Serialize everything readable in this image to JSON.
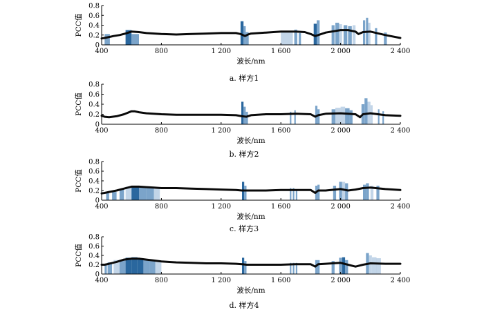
{
  "axis_common": {
    "xlabel": "波长/nm",
    "ylabel": "PCC值",
    "xticks": [
      400,
      800,
      1200,
      1600,
      2000,
      2400
    ],
    "xtick_labels": [
      "400",
      "800",
      "1 200",
      "1 600",
      "2 000",
      "2 400"
    ],
    "yticks": [
      0,
      0.2,
      0.4,
      0.6,
      0.8
    ],
    "ytick_labels": [
      "0",
      "0.2",
      "0.4",
      "0.6",
      "0.8"
    ],
    "xlim": [
      400,
      2400
    ],
    "ylim": [
      0,
      0.8
    ]
  },
  "colors": {
    "line": "#0a0a0a",
    "band_dark": "#1f5f99",
    "band_mid": "#4f86b8",
    "band_light": "#8fb3d6"
  },
  "chart_data": [
    {
      "type": "line",
      "caption": "a.  样方1",
      "series": [
        {
          "x": [
            400,
            420,
            450,
            480,
            520,
            560,
            600,
            650,
            700,
            800,
            900,
            1000,
            1100,
            1200,
            1300,
            1330,
            1360,
            1380,
            1400,
            1500,
            1600,
            1700,
            1760,
            1800,
            1830,
            1850,
            1900,
            2000,
            2050,
            2100,
            2120,
            2150,
            2200,
            2300,
            2400
          ],
          "y": [
            0.13,
            0.14,
            0.16,
            0.18,
            0.2,
            0.23,
            0.27,
            0.26,
            0.24,
            0.22,
            0.21,
            0.22,
            0.23,
            0.24,
            0.24,
            0.22,
            0.18,
            0.21,
            0.23,
            0.25,
            0.27,
            0.27,
            0.26,
            0.22,
            0.18,
            0.2,
            0.25,
            0.3,
            0.3,
            0.27,
            0.22,
            0.26,
            0.27,
            0.2,
            0.14
          ]
        }
      ],
      "bands": [
        [
          420,
          455,
          0.22,
          "mid"
        ],
        [
          560,
          600,
          0.3,
          "dark"
        ],
        [
          600,
          650,
          0.22,
          "mid"
        ],
        [
          1330,
          1350,
          0.48,
          "dark"
        ],
        [
          1350,
          1365,
          0.38,
          "mid"
        ],
        [
          1365,
          1385,
          0.26,
          "mid"
        ],
        [
          1600,
          1680,
          0.27,
          "light"
        ],
        [
          1690,
          1710,
          0.31,
          "mid"
        ],
        [
          1720,
          1735,
          0.24,
          "mid"
        ],
        [
          1820,
          1840,
          0.43,
          "dark"
        ],
        [
          1840,
          1860,
          0.5,
          "mid"
        ],
        [
          1940,
          1960,
          0.4,
          "mid"
        ],
        [
          1965,
          1990,
          0.45,
          "mid"
        ],
        [
          1990,
          2010,
          0.42,
          "light"
        ],
        [
          2020,
          2045,
          0.4,
          "mid"
        ],
        [
          2050,
          2075,
          0.38,
          "mid"
        ],
        [
          2080,
          2100,
          0.4,
          "light"
        ],
        [
          2150,
          2165,
          0.5,
          "mid"
        ],
        [
          2170,
          2185,
          0.55,
          "mid"
        ],
        [
          2185,
          2200,
          0.45,
          "light"
        ],
        [
          2230,
          2245,
          0.34,
          "mid"
        ],
        [
          2290,
          2310,
          0.25,
          "mid"
        ]
      ]
    },
    {
      "type": "line",
      "caption": "b.  样方2",
      "series": [
        {
          "x": [
            400,
            420,
            450,
            500,
            550,
            600,
            620,
            650,
            700,
            800,
            900,
            1000,
            1100,
            1200,
            1300,
            1340,
            1370,
            1400,
            1500,
            1600,
            1700,
            1800,
            1830,
            1850,
            1900,
            2000,
            2100,
            2130,
            2150,
            2200,
            2300,
            2400
          ],
          "y": [
            0.17,
            0.15,
            0.14,
            0.16,
            0.2,
            0.26,
            0.26,
            0.24,
            0.22,
            0.2,
            0.19,
            0.19,
            0.19,
            0.19,
            0.18,
            0.16,
            0.15,
            0.18,
            0.2,
            0.2,
            0.21,
            0.2,
            0.15,
            0.18,
            0.21,
            0.22,
            0.2,
            0.14,
            0.2,
            0.22,
            0.18,
            0.17
          ]
        }
      ],
      "bands": [
        [
          1335,
          1350,
          0.45,
          "dark"
        ],
        [
          1350,
          1365,
          0.35,
          "mid"
        ],
        [
          1365,
          1380,
          0.25,
          "mid"
        ],
        [
          1660,
          1670,
          0.25,
          "mid"
        ],
        [
          1690,
          1700,
          0.28,
          "mid"
        ],
        [
          1830,
          1845,
          0.37,
          "mid"
        ],
        [
          1845,
          1860,
          0.3,
          "mid"
        ],
        [
          1940,
          1965,
          0.3,
          "mid"
        ],
        [
          1965,
          2000,
          0.33,
          "light"
        ],
        [
          2000,
          2030,
          0.35,
          "light"
        ],
        [
          2030,
          2060,
          0.32,
          "mid"
        ],
        [
          2060,
          2080,
          0.28,
          "mid"
        ],
        [
          2140,
          2160,
          0.4,
          "mid"
        ],
        [
          2160,
          2180,
          0.52,
          "mid"
        ],
        [
          2180,
          2200,
          0.45,
          "light"
        ],
        [
          2200,
          2215,
          0.38,
          "light"
        ],
        [
          2250,
          2260,
          0.3,
          "mid"
        ],
        [
          2280,
          2290,
          0.26,
          "mid"
        ]
      ]
    },
    {
      "type": "line",
      "caption": "c.  样方3",
      "series": [
        {
          "x": [
            400,
            420,
            450,
            500,
            550,
            600,
            650,
            700,
            750,
            800,
            900,
            1000,
            1100,
            1200,
            1300,
            1340,
            1370,
            1400,
            1500,
            1600,
            1700,
            1800,
            1830,
            1850,
            1900,
            2000,
            2050,
            2100,
            2150,
            2200,
            2300,
            2400
          ],
          "y": [
            0.14,
            0.15,
            0.17,
            0.2,
            0.24,
            0.28,
            0.28,
            0.27,
            0.26,
            0.25,
            0.25,
            0.24,
            0.23,
            0.22,
            0.21,
            0.2,
            0.2,
            0.2,
            0.2,
            0.21,
            0.21,
            0.21,
            0.15,
            0.2,
            0.2,
            0.23,
            0.2,
            0.22,
            0.25,
            0.26,
            0.23,
            0.21
          ]
        }
      ],
      "bands": [
        [
          430,
          450,
          0.17,
          "mid"
        ],
        [
          470,
          500,
          0.17,
          "mid"
        ],
        [
          520,
          550,
          0.22,
          "mid"
        ],
        [
          560,
          600,
          0.28,
          "light"
        ],
        [
          600,
          650,
          0.29,
          "dark"
        ],
        [
          650,
          700,
          0.28,
          "mid"
        ],
        [
          700,
          750,
          0.27,
          "mid"
        ],
        [
          750,
          790,
          0.26,
          "light"
        ],
        [
          1340,
          1355,
          0.38,
          "dark"
        ],
        [
          1355,
          1370,
          0.3,
          "mid"
        ],
        [
          1660,
          1670,
          0.25,
          "mid"
        ],
        [
          1680,
          1690,
          0.25,
          "mid"
        ],
        [
          1700,
          1710,
          0.22,
          "mid"
        ],
        [
          1830,
          1845,
          0.3,
          "mid"
        ],
        [
          1845,
          1860,
          0.32,
          "mid"
        ],
        [
          1950,
          1970,
          0.3,
          "mid"
        ],
        [
          1990,
          2010,
          0.38,
          "mid"
        ],
        [
          2010,
          2030,
          0.38,
          "light"
        ],
        [
          2030,
          2050,
          0.35,
          "mid"
        ],
        [
          2150,
          2170,
          0.32,
          "mid"
        ],
        [
          2170,
          2190,
          0.35,
          "mid"
        ],
        [
          2200,
          2220,
          0.3,
          "light"
        ],
        [
          2240,
          2260,
          0.3,
          "mid"
        ]
      ]
    },
    {
      "type": "line",
      "caption": "d.  样方4",
      "series": [
        {
          "x": [
            400,
            420,
            450,
            500,
            550,
            600,
            650,
            700,
            750,
            800,
            900,
            1000,
            1100,
            1200,
            1300,
            1340,
            1370,
            1400,
            1500,
            1600,
            1700,
            1800,
            1830,
            1850,
            1900,
            2000,
            2050,
            2100,
            2150,
            2200,
            2300,
            2400
          ],
          "y": [
            0.2,
            0.2,
            0.22,
            0.26,
            0.31,
            0.33,
            0.33,
            0.31,
            0.29,
            0.27,
            0.25,
            0.24,
            0.23,
            0.23,
            0.22,
            0.21,
            0.2,
            0.2,
            0.2,
            0.2,
            0.21,
            0.21,
            0.16,
            0.21,
            0.22,
            0.24,
            0.2,
            0.16,
            0.2,
            0.23,
            0.22,
            0.22
          ]
        }
      ],
      "bands": [
        [
          420,
          435,
          0.2,
          "mid"
        ],
        [
          440,
          470,
          0.25,
          "mid"
        ],
        [
          480,
          520,
          0.3,
          "light"
        ],
        [
          520,
          560,
          0.3,
          "mid"
        ],
        [
          560,
          600,
          0.35,
          "dark"
        ],
        [
          600,
          640,
          0.36,
          "dark"
        ],
        [
          640,
          680,
          0.33,
          "dark"
        ],
        [
          680,
          720,
          0.32,
          "mid"
        ],
        [
          720,
          760,
          0.3,
          "mid"
        ],
        [
          760,
          800,
          0.28,
          "light"
        ],
        [
          1340,
          1355,
          0.35,
          "dark"
        ],
        [
          1355,
          1370,
          0.28,
          "mid"
        ],
        [
          1660,
          1670,
          0.24,
          "mid"
        ],
        [
          1680,
          1690,
          0.24,
          "mid"
        ],
        [
          1700,
          1710,
          0.24,
          "mid"
        ],
        [
          1830,
          1845,
          0.3,
          "mid"
        ],
        [
          1845,
          1860,
          0.3,
          "mid"
        ],
        [
          1940,
          1960,
          0.28,
          "mid"
        ],
        [
          1990,
          2010,
          0.35,
          "mid"
        ],
        [
          2010,
          2030,
          0.36,
          "dark"
        ],
        [
          2030,
          2050,
          0.3,
          "mid"
        ],
        [
          2170,
          2190,
          0.45,
          "mid"
        ],
        [
          2190,
          2210,
          0.4,
          "light"
        ],
        [
          2210,
          2240,
          0.36,
          "light"
        ],
        [
          2240,
          2270,
          0.34,
          "light"
        ]
      ]
    }
  ]
}
